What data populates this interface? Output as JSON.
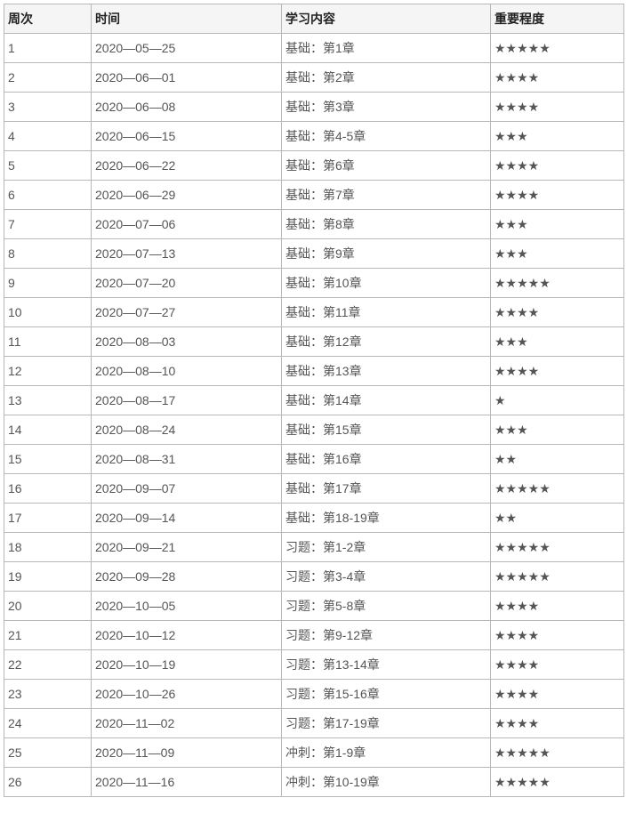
{
  "columns": [
    "周次",
    "时间",
    "学习内容",
    "重要程度"
  ],
  "rows": [
    [
      "1",
      "2020—05—25",
      "基础：第1章",
      "★★★★★"
    ],
    [
      "2",
      "2020—06—01",
      "基础：第2章",
      "★★★★"
    ],
    [
      "3",
      "2020—06—08",
      "基础：第3章",
      "★★★★"
    ],
    [
      "4",
      "2020—06—15",
      "基础：第4-5章",
      "★★★"
    ],
    [
      "5",
      "2020—06—22",
      "基础：第6章",
      "★★★★"
    ],
    [
      "6",
      "2020—06—29",
      "基础：第7章",
      "★★★★"
    ],
    [
      "7",
      "2020—07—06",
      "基础：第8章",
      "★★★"
    ],
    [
      "8",
      "2020—07—13",
      "基础：第9章",
      "★★★"
    ],
    [
      "9",
      "2020—07—20",
      "基础：第10章",
      "★★★★★"
    ],
    [
      "10",
      "2020—07—27",
      "基础：第11章",
      "★★★★"
    ],
    [
      "11",
      "2020—08—03",
      "基础：第12章",
      "★★★"
    ],
    [
      "12",
      "2020—08—10",
      "基础：第13章",
      "★★★★"
    ],
    [
      "13",
      "2020—08—17",
      "基础：第14章",
      "★"
    ],
    [
      "14",
      "2020—08—24",
      "基础：第15章",
      "★★★"
    ],
    [
      "15",
      "2020—08—31",
      "基础：第16章",
      "★★"
    ],
    [
      "16",
      "2020—09—07",
      "基础：第17章",
      "★★★★★"
    ],
    [
      "17",
      "2020—09—14",
      "基础：第18-19章",
      "★★"
    ],
    [
      "18",
      "2020—09—21",
      "习题：第1-2章",
      "★★★★★"
    ],
    [
      "19",
      "2020—09—28",
      "习题：第3-4章",
      "★★★★★"
    ],
    [
      "20",
      "2020—10—05",
      "习题：第5-8章",
      "★★★★"
    ],
    [
      "21",
      "2020—10—12",
      "习题：第9-12章",
      "★★★★"
    ],
    [
      "22",
      "2020—10—19",
      "习题：第13-14章",
      "★★★★"
    ],
    [
      "23",
      "2020—10—26",
      "习题：第15-16章",
      "★★★★"
    ],
    [
      "24",
      "2020—11—02",
      "习题：第17-19章",
      "★★★★"
    ],
    [
      "25",
      "2020—11—09",
      "冲刺：第1-9章",
      "★★★★★"
    ],
    [
      "26",
      "2020—11—16",
      "冲刺：第10-19章",
      "★★★★★"
    ]
  ]
}
